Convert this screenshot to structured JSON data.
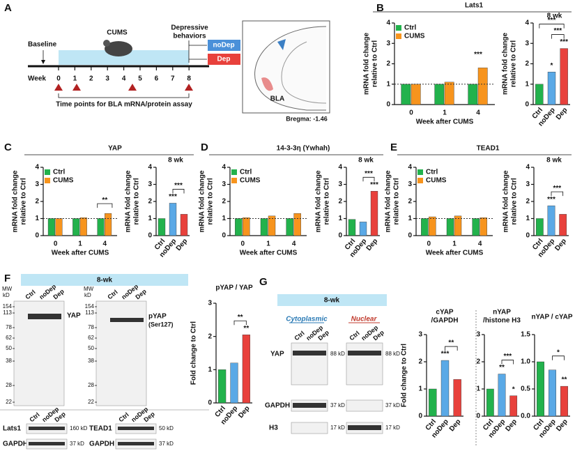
{
  "panel_a": {
    "letter": "A",
    "baseline": "Baseline",
    "cums": "CUMS",
    "behaviors": [
      "Depressive",
      "behaviors"
    ],
    "nodep": "noDep",
    "dep": "Dep",
    "week_label": "Week",
    "weeks": [
      "0",
      "1",
      "2",
      "3",
      "4",
      "5",
      "6",
      "7",
      "8"
    ],
    "assay": "Time points for BLA mRNA/protein assay",
    "region": "BLA",
    "bregma": "Bregma: -1.46"
  },
  "panel_f": {
    "letter": "F",
    "banner": "8-wk",
    "mw_title": "MW",
    "kd": "kD",
    "mw": [
      "154",
      "113",
      "78",
      "62",
      "50",
      "38",
      "28",
      "22"
    ],
    "lanes": [
      "Ctrl",
      "noDep",
      "Dep"
    ],
    "yap": "YAP",
    "pyap": "pYAP",
    "site": "(Ser127)",
    "lats1": "Lats1",
    "tead1": "TEAD1",
    "gapdh": "GAPDH",
    "lats1_kd": "160 kD",
    "tead1_kd": "50 kD",
    "gapdh_kd": "37 kD"
  },
  "panel_g": {
    "letter": "G",
    "banner": "8-wk",
    "cyto": "Cytoplasmic",
    "nuclear": "Nuclear",
    "lanes": [
      "Ctrl",
      "noDep",
      "Dep"
    ],
    "yap": "YAP",
    "gapdh": "GAPDH",
    "h3": "H3",
    "yap_kd": "88 kD",
    "gapdh_kd": "37 kD",
    "h3_kd": "17 kD"
  },
  "chart_data": [
    {
      "type": "grouped-bar",
      "panel": "B",
      "title": "Lats1",
      "ylabel": [
        "mRNA fold change",
        "relative to Ctrl"
      ],
      "xlabel": "Week after CUMS",
      "categories": [
        "0",
        "1",
        "4"
      ],
      "series": [
        {
          "name": "Ctrl",
          "color": "#22b24c",
          "values": [
            1.0,
            1.0,
            1.0
          ]
        },
        {
          "name": "CUMS",
          "color": "#f7941d",
          "values": [
            1.0,
            1.1,
            1.8
          ]
        }
      ],
      "ylim": [
        0,
        4
      ],
      "yticks": [
        0,
        1,
        2,
        3,
        4
      ],
      "refline": 1,
      "annotations": [
        {
          "text": "***",
          "at": "4"
        }
      ]
    },
    {
      "type": "bar",
      "subtitle": "8 wk",
      "ylabel": [
        "mRNA fold change",
        "relative to Ctrl"
      ],
      "categories": [
        "Ctrl",
        "noDep",
        "Dep"
      ],
      "values": [
        1.0,
        1.6,
        2.75
      ],
      "colors": [
        "#22b24c",
        "#5aa9e6",
        "#e8413c"
      ],
      "ylim": [
        0,
        4
      ],
      "yticks": [
        0,
        1,
        2,
        3,
        4
      ],
      "annotations": [
        {
          "text": "*",
          "at": "noDep"
        },
        {
          "text": "***",
          "at": "Dep"
        },
        {
          "text": "***",
          "from": "noDep",
          "to": "Dep"
        },
        {
          "text": "***",
          "from": "Ctrl",
          "to": "Dep"
        }
      ]
    },
    {
      "type": "grouped-bar",
      "panel": "C",
      "title": "YAP",
      "ylabel": [
        "mRNA fold change",
        "relative to Ctrl"
      ],
      "xlabel": "Week after CUMS",
      "categories": [
        "0",
        "1",
        "4"
      ],
      "series": [
        {
          "name": "Ctrl",
          "color": "#22b24c",
          "values": [
            1.0,
            1.0,
            1.0
          ]
        },
        {
          "name": "CUMS",
          "color": "#f7941d",
          "values": [
            1.0,
            1.05,
            1.3
          ]
        }
      ],
      "ylim": [
        0,
        4
      ],
      "yticks": [
        0,
        1,
        2,
        3,
        4
      ],
      "refline": 1,
      "annotations": [
        {
          "text": "**",
          "at": "4",
          "bracket": true
        }
      ]
    },
    {
      "type": "bar",
      "subtitle": "8 wk",
      "ylabel": [
        "mRNA fold change",
        "relative to Ctrl"
      ],
      "categories": [
        "Ctrl",
        "noDep",
        "Dep"
      ],
      "values": [
        1.0,
        1.9,
        1.25
      ],
      "colors": [
        "#22b24c",
        "#5aa9e6",
        "#e8413c"
      ],
      "ylim": [
        0,
        4
      ],
      "yticks": [
        0,
        1,
        2,
        3,
        4
      ],
      "annotations": [
        {
          "text": "***",
          "at": "noDep"
        },
        {
          "text": "***",
          "from": "noDep",
          "to": "Dep"
        }
      ]
    },
    {
      "type": "grouped-bar",
      "panel": "D",
      "title": "14-3-3η (Ywhah)",
      "ylabel": [
        "mRNA fold change",
        "relative to Ctrl"
      ],
      "xlabel": "Week after CUMS",
      "categories": [
        "0",
        "1",
        "4"
      ],
      "series": [
        {
          "name": "Ctrl",
          "color": "#22b24c",
          "values": [
            1.0,
            1.0,
            1.0
          ]
        },
        {
          "name": "CUMS",
          "color": "#f7941d",
          "values": [
            1.05,
            1.15,
            1.3
          ]
        }
      ],
      "ylim": [
        0,
        4
      ],
      "yticks": [
        0,
        1,
        2,
        3,
        4
      ],
      "refline": 1,
      "annotations": []
    },
    {
      "type": "bar",
      "subtitle": "8 wk",
      "ylabel": [
        "mRNA fold change",
        "relative to Ctrl"
      ],
      "categories": [
        "Ctrl",
        "noDep",
        "Dep"
      ],
      "values": [
        0.95,
        0.8,
        2.6
      ],
      "colors": [
        "#22b24c",
        "#5aa9e6",
        "#e8413c"
      ],
      "ylim": [
        0,
        4
      ],
      "yticks": [
        0,
        1,
        2,
        3,
        4
      ],
      "annotations": [
        {
          "text": "***",
          "at": "Dep"
        },
        {
          "text": "***",
          "from": "noDep",
          "to": "Dep"
        }
      ]
    },
    {
      "type": "grouped-bar",
      "panel": "E",
      "title": "TEAD1",
      "ylabel": [
        "mRNA fold change",
        "relative to Ctrl"
      ],
      "xlabel": "Week after CUMS",
      "categories": [
        "0",
        "1",
        "4"
      ],
      "series": [
        {
          "name": "Ctrl",
          "color": "#22b24c",
          "values": [
            1.0,
            1.0,
            1.0
          ]
        },
        {
          "name": "CUMS",
          "color": "#f7941d",
          "values": [
            1.1,
            1.15,
            1.05
          ]
        }
      ],
      "ylim": [
        0,
        4
      ],
      "yticks": [
        0,
        1,
        2,
        3,
        4
      ],
      "refline": 1,
      "annotations": []
    },
    {
      "type": "bar",
      "subtitle": "8 wk",
      "ylabel": [
        "mRNA fold change",
        "relative to Ctrl"
      ],
      "categories": [
        "Ctrl",
        "noDep",
        "Dep"
      ],
      "values": [
        1.0,
        1.75,
        1.25
      ],
      "colors": [
        "#22b24c",
        "#5aa9e6",
        "#e8413c"
      ],
      "ylim": [
        0,
        4
      ],
      "yticks": [
        0,
        1,
        2,
        3,
        4
      ],
      "annotations": [
        {
          "text": "***",
          "at": "noDep"
        },
        {
          "text": "***",
          "from": "noDep",
          "to": "Dep"
        }
      ]
    },
    {
      "type": "bar",
      "title": "pYAP / YAP",
      "ylabel": [
        "Fold change to Ctrl"
      ],
      "categories": [
        "Ctrl",
        "noDep",
        "Dep"
      ],
      "values": [
        1.0,
        1.2,
        2.05
      ],
      "colors": [
        "#22b24c",
        "#5aa9e6",
        "#e8413c"
      ],
      "ylim": [
        0,
        3
      ],
      "yticks": [
        0,
        1,
        2,
        3
      ],
      "annotations": [
        {
          "text": "**",
          "at": "Dep"
        },
        {
          "text": "**",
          "from": "noDep",
          "to": "Dep"
        }
      ]
    },
    {
      "type": "bar",
      "title": [
        "cYAP",
        "/GAPDH"
      ],
      "ylabel": [
        "Fold change to Ctrl"
      ],
      "categories": [
        "Ctrl",
        "noDep",
        "Dep"
      ],
      "values": [
        1.0,
        2.05,
        1.35
      ],
      "colors": [
        "#22b24c",
        "#5aa9e6",
        "#e8413c"
      ],
      "ylim": [
        0,
        3
      ],
      "yticks": [
        0,
        1,
        2,
        3
      ],
      "annotations": [
        {
          "text": "***",
          "at": "noDep"
        },
        {
          "text": "**",
          "from": "noDep",
          "to": "Dep"
        }
      ]
    },
    {
      "type": "bar",
      "title": [
        "nYAP",
        "/histone H3"
      ],
      "categories": [
        "Ctrl",
        "noDep",
        "Dep"
      ],
      "values": [
        1.0,
        1.55,
        0.75
      ],
      "colors": [
        "#22b24c",
        "#5aa9e6",
        "#e8413c"
      ],
      "ylim": [
        0,
        3
      ],
      "yticks": [
        0,
        1,
        2,
        3
      ],
      "annotations": [
        {
          "text": "**",
          "at": "noDep"
        },
        {
          "text": "*",
          "at": "Dep"
        },
        {
          "text": "***",
          "from": "noDep",
          "to": "Dep"
        }
      ]
    },
    {
      "type": "bar",
      "title": "nYAP / cYAP",
      "categories": [
        "Ctrl",
        "noDep",
        "Dep"
      ],
      "values": [
        1.0,
        0.85,
        0.55
      ],
      "colors": [
        "#22b24c",
        "#5aa9e6",
        "#e8413c"
      ],
      "ylim": [
        0,
        1.5
      ],
      "yticks": [
        {
          "value": 0,
          "label": "0.0"
        },
        0.5,
        {
          "value": 1,
          "label": "1.0"
        },
        1.5
      ],
      "annotations": [
        {
          "text": "**",
          "at": "Dep"
        },
        {
          "text": "*",
          "from": "noDep",
          "to": "Dep"
        }
      ]
    }
  ]
}
